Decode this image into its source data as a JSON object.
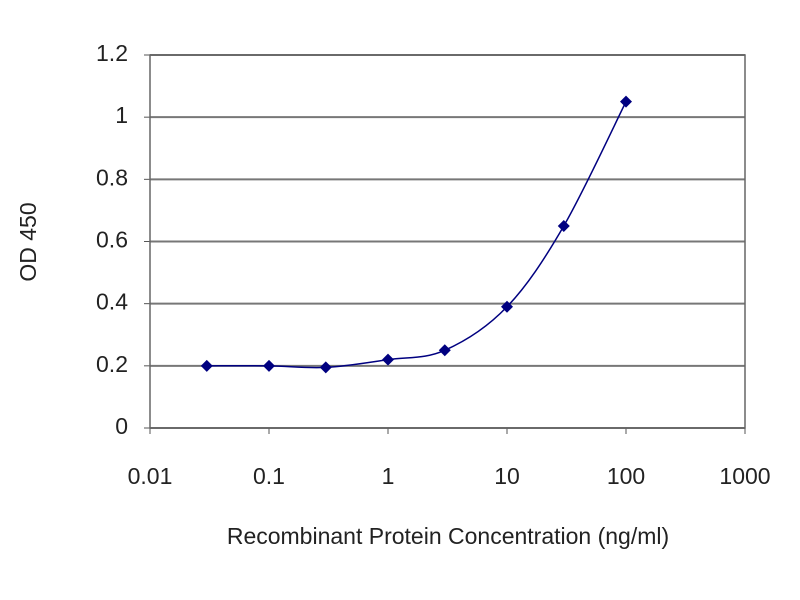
{
  "chart_data": {
    "type": "line",
    "x": [
      0.03,
      0.1,
      0.3,
      1,
      3,
      10,
      30,
      100
    ],
    "values": [
      0.2,
      0.2,
      0.195,
      0.22,
      0.25,
      0.39,
      0.65,
      1.05
    ],
    "color": "#000080",
    "xlabel": "Recombinant Protein Concentration (ng/ml)",
    "ylabel": "OD 450",
    "xlim": [
      0.01,
      1000
    ],
    "xticks": [
      0.01,
      0.1,
      1,
      10,
      100,
      1000
    ],
    "xscale": "log",
    "ylim": [
      0,
      1.2
    ],
    "yticks": [
      0,
      0.2,
      0.4,
      0.6,
      0.8,
      1,
      1.2
    ],
    "grid": true
  }
}
